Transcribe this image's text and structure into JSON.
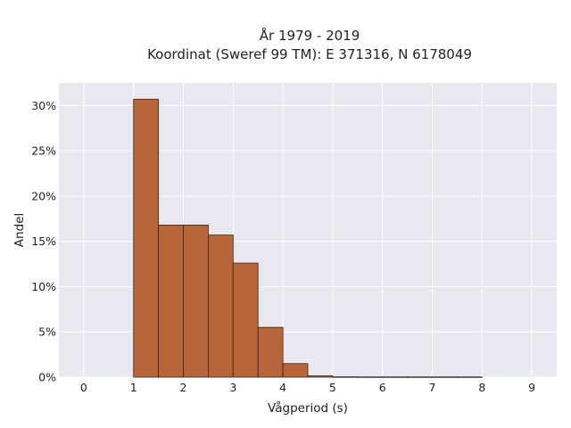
{
  "chart_data": {
    "type": "bar",
    "title_lines": [
      "År 1979 - 2019",
      "Koordinat (Sweref 99 TM): E 371316, N 6178049"
    ],
    "xlabel": "Vågperiod (s)",
    "ylabel": "Andel",
    "xlim": [
      -0.5,
      9.5
    ],
    "ylim": [
      0,
      0.325
    ],
    "x_ticks": [
      0,
      1,
      2,
      3,
      4,
      5,
      6,
      7,
      8,
      9
    ],
    "y_ticks": [
      0,
      0.05,
      0.1,
      0.15,
      0.2,
      0.25,
      0.3
    ],
    "y_tick_labels": [
      "0%",
      "5%",
      "10%",
      "15%",
      "20%",
      "25%",
      "30%"
    ],
    "bin_width": 0.5,
    "bins": [
      {
        "start": 1.0,
        "value": 0.307
      },
      {
        "start": 1.5,
        "value": 0.168
      },
      {
        "start": 2.0,
        "value": 0.168
      },
      {
        "start": 2.5,
        "value": 0.157
      },
      {
        "start": 3.0,
        "value": 0.126
      },
      {
        "start": 3.5,
        "value": 0.055
      },
      {
        "start": 4.0,
        "value": 0.015
      },
      {
        "start": 4.5,
        "value": 0.0015
      },
      {
        "start": 5.0,
        "value": 0.0004
      },
      {
        "start": 5.5,
        "value": 0.0003
      },
      {
        "start": 6.0,
        "value": 0.0003
      },
      {
        "start": 6.5,
        "value": 0.0003
      },
      {
        "start": 7.0,
        "value": 0.0003
      },
      {
        "start": 7.5,
        "value": 0.0003
      }
    ],
    "grid": true,
    "colors": {
      "bar_fill": "#b8653a",
      "bar_stroke": "#3a2416",
      "plot_background": "#e8e8f0",
      "grid": "#ffffff"
    }
  }
}
